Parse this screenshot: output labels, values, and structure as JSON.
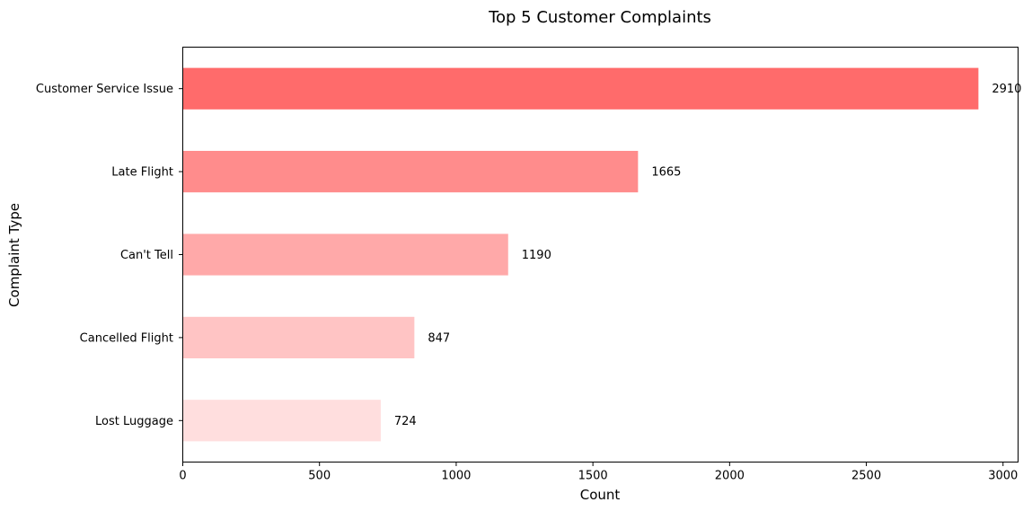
{
  "chart_data": {
    "type": "bar",
    "orientation": "horizontal",
    "title": "Top 5 Customer Complaints",
    "xlabel": "Count",
    "ylabel": "Complaint Type",
    "categories": [
      "Customer Service Issue",
      "Late Flight",
      "Can't Tell",
      "Cancelled Flight",
      "Lost Luggage"
    ],
    "values": [
      2910,
      1665,
      1190,
      847,
      724
    ],
    "data_labels": [
      "2910",
      "1665",
      "1190",
      "847",
      "724"
    ],
    "colors": [
      "#ff6b6b",
      "#ff8c8c",
      "#ffa9a9",
      "#ffc4c4",
      "#ffdede"
    ],
    "xlim": [
      0,
      3055
    ],
    "xticks": [
      0,
      500,
      1000,
      1500,
      2000,
      2500,
      3000
    ],
    "xtick_labels": [
      "0",
      "500",
      "1000",
      "1500",
      "2000",
      "2500",
      "3000"
    ],
    "grid": false,
    "legend": "none"
  }
}
